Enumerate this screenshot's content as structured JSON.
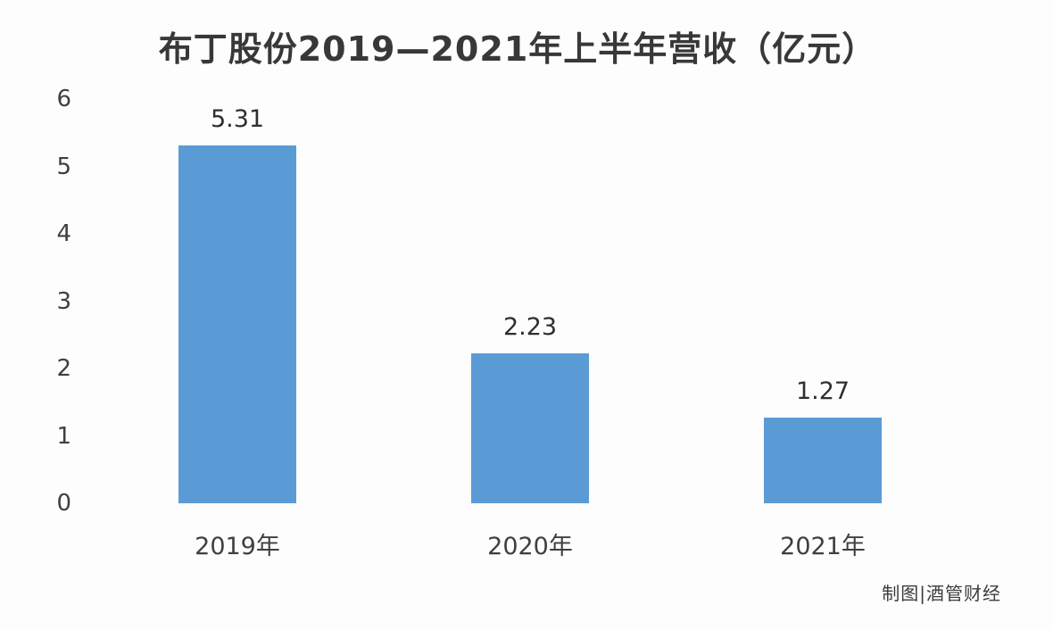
{
  "title": "布丁股份2019—2021年上半年营收（亿元）",
  "credit": "制图|酒管财经",
  "chart_data": {
    "type": "bar",
    "categories": [
      "2019年",
      "2020年",
      "2021年"
    ],
    "values": [
      5.31,
      2.23,
      1.27
    ],
    "value_labels": [
      "5.31",
      "2.23",
      "1.27"
    ],
    "title": "布丁股份2019—2021年上半年营收（亿元）",
    "xlabel": "",
    "ylabel": "",
    "ylim": [
      0,
      6
    ],
    "yticks": [
      0,
      1,
      2,
      3,
      4,
      5,
      6
    ],
    "grid": false,
    "legend": false,
    "bar_color": "#5b9bd5",
    "text_color": "#3f3f3f",
    "background_color": "#fdfdfd"
  }
}
